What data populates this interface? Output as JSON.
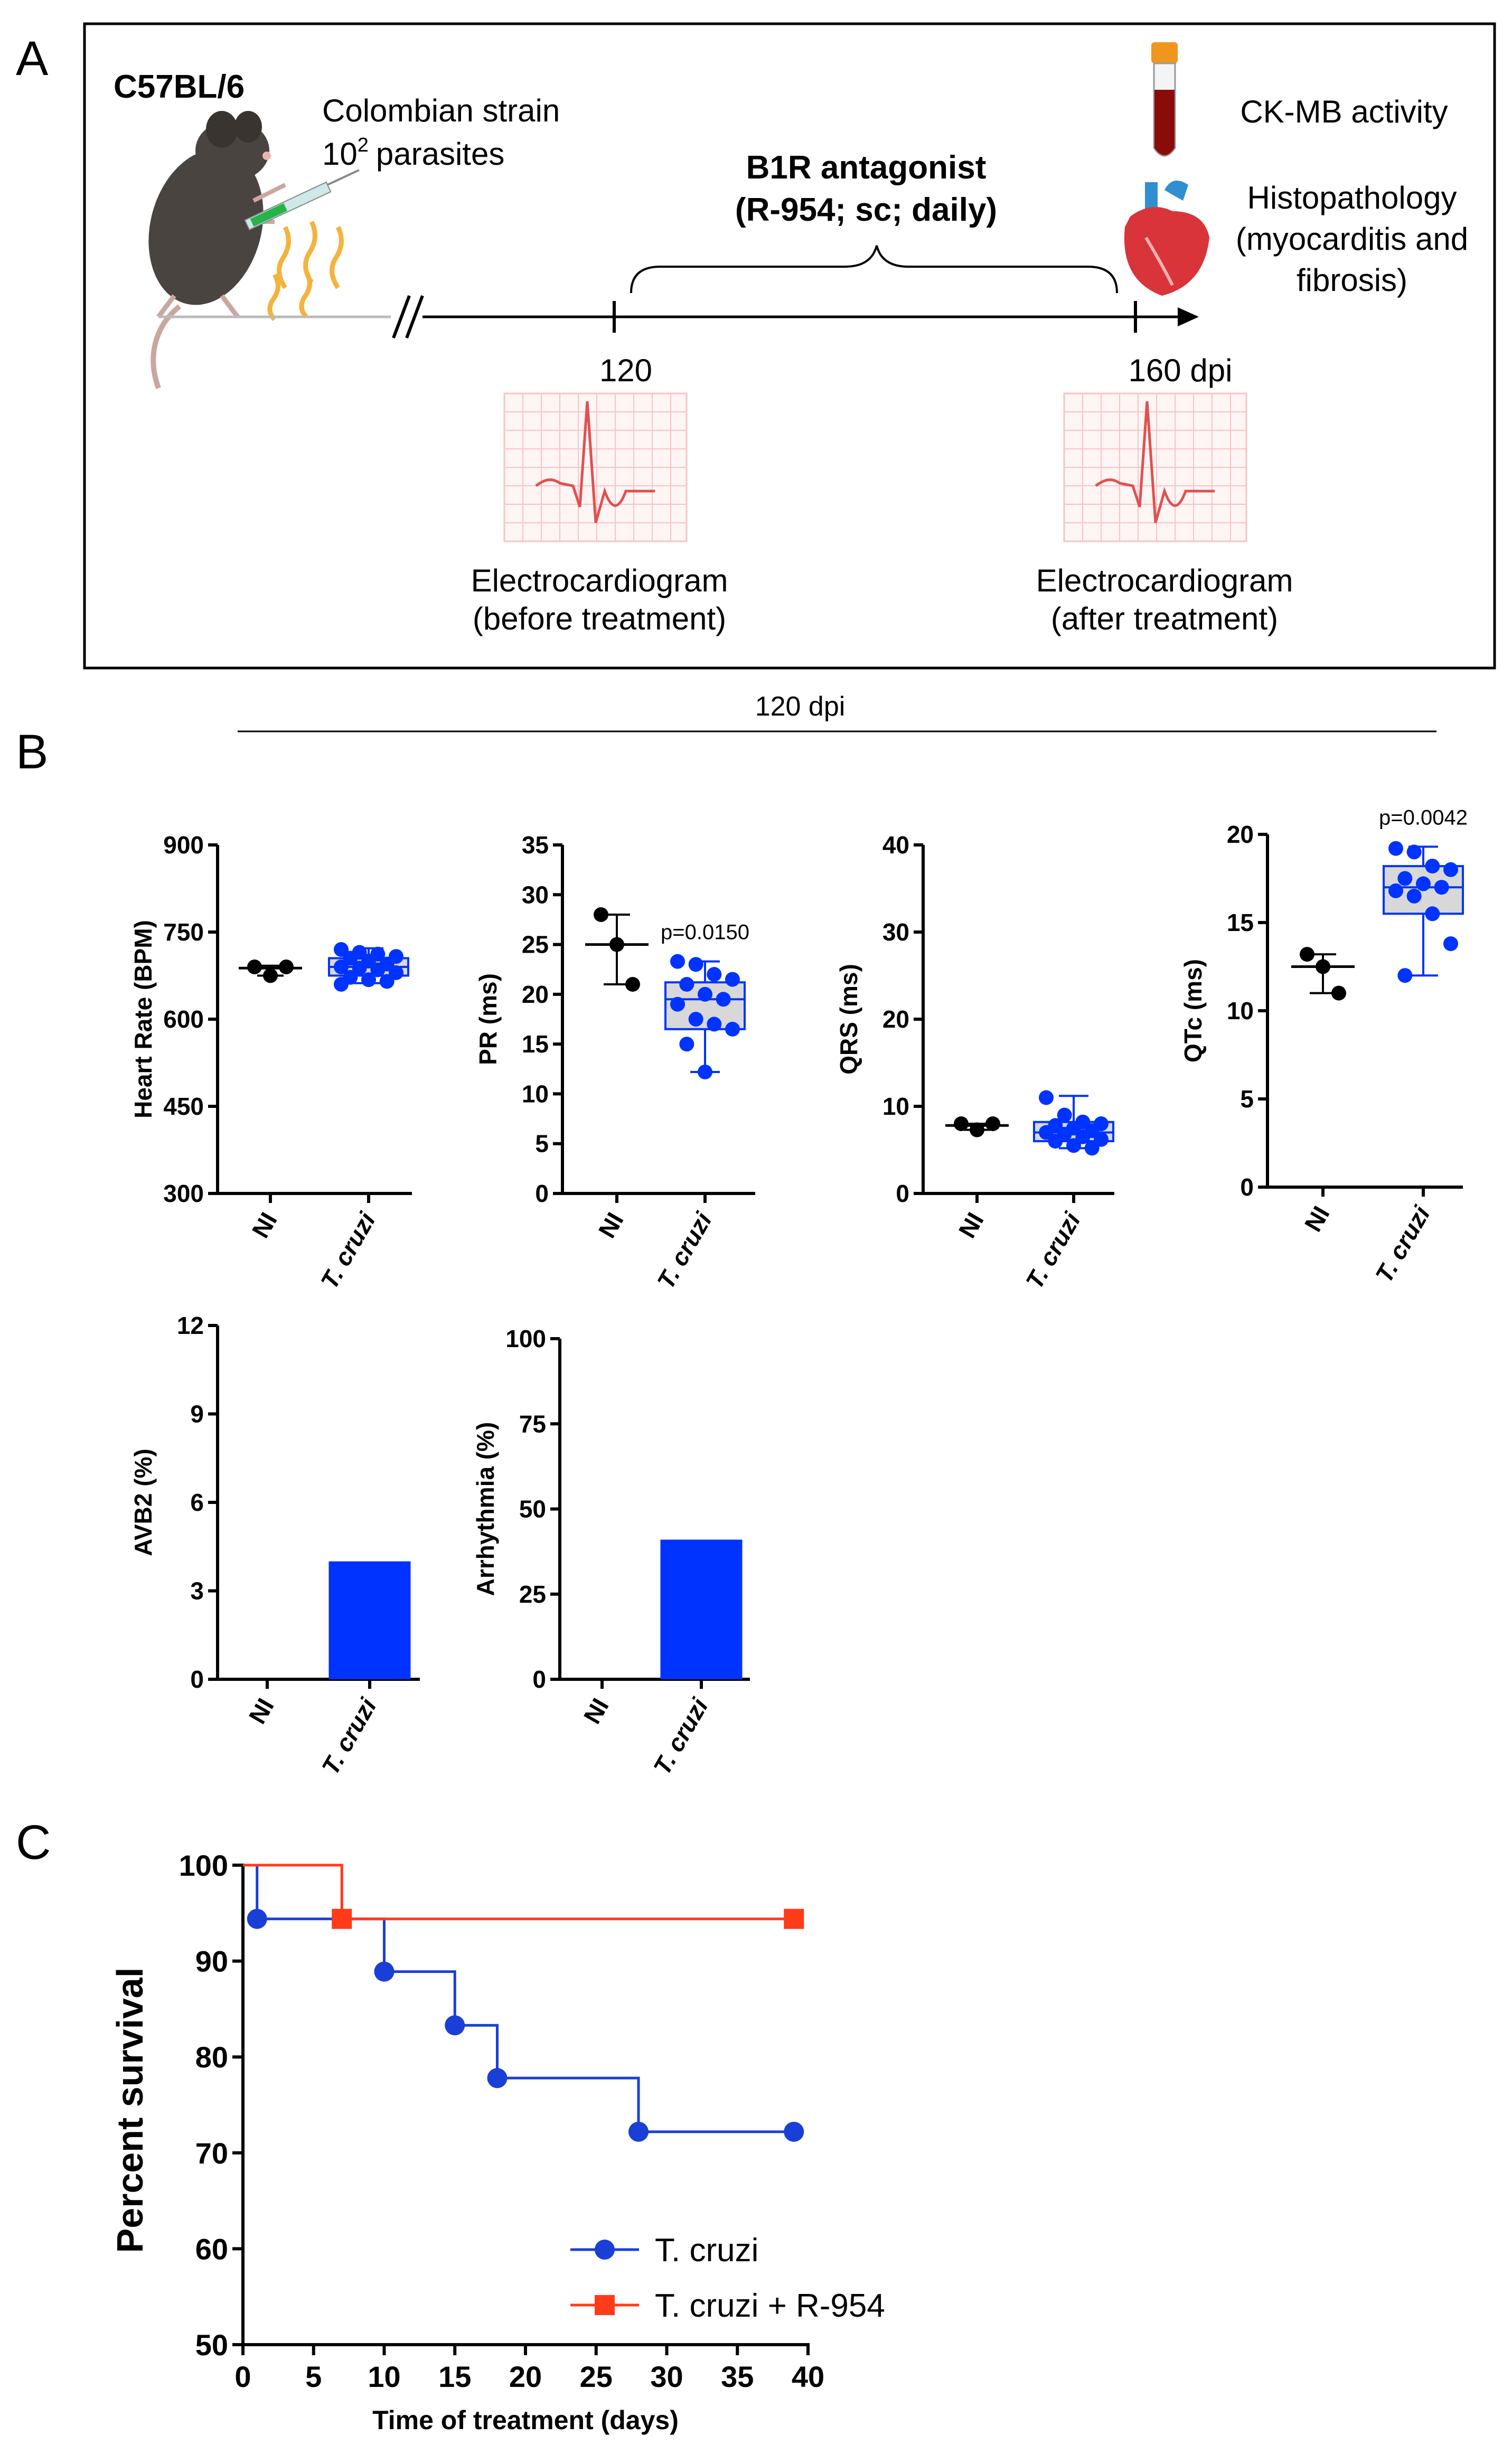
{
  "panel_labels": [
    "A",
    "B",
    "C"
  ],
  "schematic": {
    "mouse_strain": "C57BL/6",
    "strain_name": "Colombian strain",
    "inoculum_base": "10",
    "inoculum_exp": "2",
    "inoculum_unit": "parasites",
    "treatment_line1": "B1R antagonist",
    "treatment_line2": "(R-954; sc; daily)",
    "timepoint_start": "120",
    "timepoint_end": "160 dpi",
    "readout_ck": "CK-MB activity",
    "readout_histo": [
      "Histopathology",
      "(myocarditis and",
      "fibrosis)"
    ],
    "ecg_before": [
      "Electrocardiogram",
      "(before treatment)"
    ],
    "ecg_after": [
      "Electrocardiogram",
      "(after treatment)"
    ],
    "icons": [
      "mouse-icon",
      "syringe-icon",
      "parasite-icon",
      "blood-tube-icon",
      "heart-icon",
      "ecg-icon"
    ],
    "colors": {
      "ecg_trace": "#e05050",
      "ecg_grid": "#f6c4c4",
      "tube_blood": "#8b0a0a",
      "tube_cap": "#f0961e",
      "heart": "#d8343a",
      "aorta": "#2f8fd0"
    }
  },
  "panel_b_header": "120 dpi",
  "colors": {
    "ni": "#000000",
    "tcruzi": "#0033ff",
    "box_fill": "#d8d8d8",
    "survival_tcruzi": "#1a3fd6",
    "survival_r954": "#ff3b1a"
  },
  "chart_data": [
    {
      "id": "heart-rate",
      "type": "scatter",
      "title": "",
      "ylabel": "Heart Rate (BPM)",
      "categories": [
        "NI",
        "T. cruzi"
      ],
      "ylim": [
        300,
        900
      ],
      "yticks": [
        300,
        450,
        600,
        750,
        900
      ],
      "ni": {
        "points": [
          690,
          675,
          690
        ],
        "median": 688,
        "whisker": [
          675,
          692
        ]
      },
      "tcruzi": {
        "points": [
          720,
          715,
          712,
          708,
          705,
          700,
          695,
          690,
          688,
          685,
          680,
          672,
          668,
          665,
          660
        ],
        "box": [
          675,
          705
        ],
        "median": 690,
        "whisker": [
          662,
          722
        ]
      },
      "pvalue": ""
    },
    {
      "id": "pr",
      "type": "scatter",
      "ylabel": "PR (ms)",
      "categories": [
        "NI",
        "T. cruzi"
      ],
      "ylim": [
        0,
        35
      ],
      "yticks": [
        0,
        5,
        10,
        15,
        20,
        25,
        30,
        35
      ],
      "ni": {
        "points": [
          28,
          25,
          21
        ],
        "median": 25,
        "whisker": [
          21,
          28
        ]
      },
      "tcruzi": {
        "points": [
          23.3,
          23,
          22,
          21.5,
          21,
          20,
          19.5,
          19,
          17.5,
          17,
          16.5,
          15,
          12.2
        ],
        "box": [
          16.5,
          21.2
        ],
        "median": 19.5,
        "whisker": [
          12.2,
          23.3
        ]
      },
      "pvalue": "p=0.0150"
    },
    {
      "id": "qrs",
      "type": "scatter",
      "ylabel": "QRS (ms)",
      "categories": [
        "NI",
        "T. cruzi"
      ],
      "ylim": [
        0,
        40
      ],
      "yticks": [
        0,
        10,
        20,
        30,
        40
      ],
      "ni": {
        "points": [
          8,
          7.3,
          8
        ],
        "median": 7.8,
        "whisker": [
          7.3,
          8
        ]
      },
      "tcruzi": {
        "points": [
          11,
          9,
          8.2,
          8,
          7.8,
          7.5,
          7.2,
          7,
          6.8,
          6.5,
          6.2,
          6,
          5.5,
          5.2
        ],
        "box": [
          6,
          8.2
        ],
        "median": 7,
        "whisker": [
          5.2,
          11.2
        ]
      },
      "pvalue": ""
    },
    {
      "id": "qtc",
      "type": "scatter",
      "ylabel": "QTc (ms)",
      "categories": [
        "NI",
        "T. cruzi"
      ],
      "ylim": [
        0,
        20
      ],
      "yticks": [
        0,
        5,
        10,
        15,
        20
      ],
      "ni": {
        "points": [
          13.2,
          12.5,
          11
        ],
        "median": 12.5,
        "whisker": [
          11,
          13.2
        ]
      },
      "tcruzi": {
        "points": [
          19.2,
          19,
          18.2,
          18,
          17.5,
          17.2,
          17,
          16.8,
          16.5,
          15.5,
          13.8,
          12
        ],
        "box": [
          15.5,
          18.2
        ],
        "median": 17,
        "whisker": [
          12,
          19.3
        ]
      },
      "pvalue": "p=0.0042"
    },
    {
      "id": "avb2",
      "type": "bar",
      "ylabel": "AVB2 (%)",
      "categories": [
        "NI",
        "T. cruzi"
      ],
      "values": [
        0,
        4
      ],
      "ylim": [
        0,
        12
      ],
      "yticks": [
        0,
        3,
        6,
        9,
        12
      ]
    },
    {
      "id": "arrhythmia",
      "type": "bar",
      "ylabel": "Arrhythmia (%)",
      "categories": [
        "NI",
        "T. cruzi"
      ],
      "values": [
        0,
        41
      ],
      "ylim": [
        0,
        100
      ],
      "yticks": [
        0,
        25,
        50,
        75,
        100
      ]
    },
    {
      "id": "survival",
      "type": "line",
      "step": true,
      "xlabel": "Time of treatment (days)",
      "ylabel": "Percent survival",
      "xlim": [
        0,
        40
      ],
      "ylim": [
        50,
        100
      ],
      "xticks": [
        0,
        5,
        10,
        15,
        20,
        25,
        30,
        35,
        40
      ],
      "yticks": [
        50,
        60,
        70,
        80,
        90,
        100
      ],
      "legend": "bottom-right",
      "series": [
        {
          "name": "T. cruzi",
          "marker": "circle",
          "x": [
            0,
            1,
            10,
            15,
            18,
            28,
            39
          ],
          "y": [
            100,
            94.4,
            88.9,
            83.3,
            77.8,
            72.2,
            72.2
          ],
          "markers_at": [
            [
              1,
              94.4
            ],
            [
              10,
              88.9
            ],
            [
              15,
              83.3
            ],
            [
              18,
              77.8
            ],
            [
              28,
              72.2
            ],
            [
              39,
              72.2
            ]
          ]
        },
        {
          "name": "T. cruzi + R-954",
          "marker": "square",
          "x": [
            0,
            7,
            39
          ],
          "y": [
            100,
            94.4,
            94.4
          ],
          "markers_at": [
            [
              7,
              94.4
            ],
            [
              39,
              94.4
            ]
          ]
        }
      ]
    }
  ]
}
